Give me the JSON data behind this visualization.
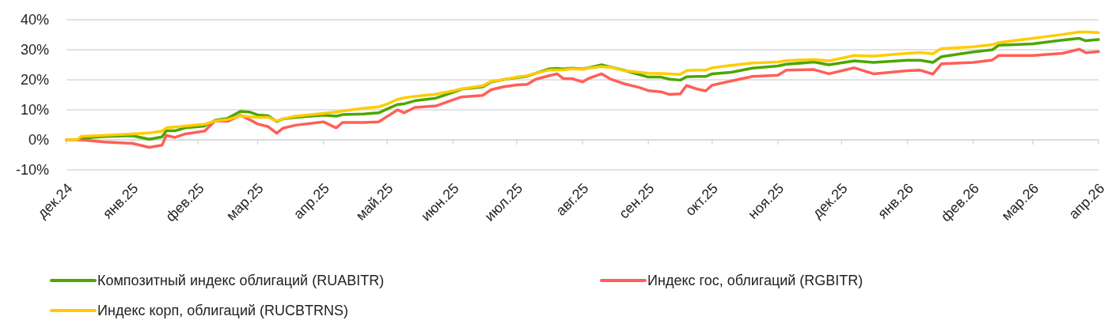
{
  "chart_data": {
    "type": "line",
    "x": [
      "2024-12-01",
      "2024-12-06",
      "2024-12-08",
      "2024-12-19",
      "2025-01-01",
      "2025-01-09",
      "2025-01-15",
      "2025-01-17",
      "2025-01-21",
      "2025-01-26",
      "2025-02-04",
      "2025-02-09",
      "2025-02-15",
      "2025-02-21",
      "2025-02-25",
      "2025-03-01",
      "2025-03-06",
      "2025-03-10",
      "2025-03-13",
      "2025-03-19",
      "2025-04-01",
      "2025-04-07",
      "2025-04-10",
      "2025-04-20",
      "2025-04-27",
      "2025-05-01",
      "2025-05-06",
      "2025-05-09",
      "2025-05-14",
      "2025-05-24",
      "2025-06-01",
      "2025-06-05",
      "2025-06-15",
      "2025-06-19",
      "2025-06-25",
      "2025-07-01",
      "2025-07-06",
      "2025-07-10",
      "2025-07-16",
      "2025-07-20",
      "2025-07-23",
      "2025-07-27",
      "2025-08-01",
      "2025-08-04",
      "2025-08-10",
      "2025-08-14",
      "2025-08-21",
      "2025-08-28",
      "2025-09-01",
      "2025-09-07",
      "2025-09-11",
      "2025-09-16",
      "2025-09-19",
      "2025-09-24",
      "2025-09-28",
      "2025-10-01",
      "2025-10-10",
      "2025-10-20",
      "2025-11-01",
      "2025-11-05",
      "2025-11-18",
      "2025-11-25",
      "2025-12-07",
      "2025-12-16",
      "2026-01-01",
      "2026-01-07",
      "2026-01-13",
      "2026-01-17",
      "2026-02-01",
      "2026-02-10",
      "2026-02-13",
      "2026-03-01",
      "2026-03-15",
      "2026-03-23",
      "2026-03-26",
      "2026-04-01"
    ],
    "series": [
      {
        "name": "Композитный индекс облигаций (RUABITR)",
        "color": "#4ca600",
        "values": [
          0,
          0,
          0.5,
          1.1,
          1.4,
          0.2,
          1.0,
          3.0,
          3.0,
          4.0,
          4.6,
          6.5,
          7.2,
          9.5,
          9.3,
          8.3,
          8.0,
          6.1,
          7.0,
          7.5,
          8.2,
          7.9,
          8.4,
          8.6,
          9.0,
          10.3,
          11.8,
          12.0,
          13.0,
          13.9,
          15.8,
          16.9,
          17.6,
          19.3,
          20.1,
          20.7,
          21.2,
          22.2,
          23.6,
          23.8,
          23.6,
          23.9,
          23.6,
          24.0,
          25.0,
          24.3,
          23.1,
          21.7,
          20.9,
          20.9,
          20.2,
          19.9,
          21.0,
          21.1,
          21.1,
          22.0,
          22.5,
          23.9,
          24.6,
          25.2,
          25.9,
          25.0,
          26.3,
          25.8,
          26.5,
          26.5,
          25.8,
          27.7,
          29.3,
          30.0,
          31.5,
          32.0,
          33.2,
          33.8,
          33.0,
          33.4
        ]
      },
      {
        "name": "Индекс гос, облигаций (RGBITR)",
        "color": "#ff5f57",
        "values": [
          0,
          0,
          0,
          -0.7,
          -1.2,
          -2.5,
          -1.8,
          1.5,
          0.8,
          2.0,
          2.9,
          6.3,
          6.2,
          8.2,
          6.8,
          5.3,
          4.4,
          2.2,
          3.9,
          4.9,
          6.0,
          4.0,
          5.8,
          5.8,
          6.0,
          7.8,
          10.0,
          9.0,
          10.8,
          11.3,
          13.3,
          14.3,
          14.8,
          16.7,
          17.7,
          18.3,
          18.5,
          20.2,
          21.3,
          22.0,
          20.4,
          20.4,
          19.3,
          20.5,
          22.0,
          20.3,
          18.6,
          17.4,
          16.4,
          16.0,
          15.1,
          15.3,
          18.1,
          16.9,
          16.3,
          18.2,
          19.6,
          21.1,
          21.5,
          23.2,
          23.4,
          22.0,
          24.0,
          22.0,
          23.0,
          23.2,
          21.9,
          25.3,
          25.8,
          26.6,
          28.1,
          28.1,
          28.8,
          30.2,
          29.0,
          29.4
        ]
      },
      {
        "name": "Индекс корп, облигаций (RUCBTRNS)",
        "color": "#ffcc00",
        "values": [
          0,
          0,
          1.2,
          1.5,
          2.0,
          2.3,
          2.9,
          4.0,
          4.3,
          4.6,
          5.2,
          6.3,
          6.8,
          8.0,
          7.7,
          7.5,
          7.5,
          6.3,
          7.0,
          7.9,
          8.8,
          9.3,
          9.6,
          10.5,
          11.0,
          11.9,
          13.5,
          14.0,
          14.5,
          15.2,
          16.3,
          17.0,
          18.0,
          19.5,
          20.1,
          20.9,
          21.4,
          22.2,
          23.2,
          23.3,
          23.3,
          23.7,
          23.5,
          23.9,
          24.4,
          24.2,
          23.0,
          22.5,
          22.2,
          22.1,
          22.0,
          21.8,
          23.1,
          23.2,
          23.2,
          24.0,
          24.8,
          25.6,
          25.9,
          26.4,
          26.8,
          26.3,
          28.1,
          27.9,
          28.8,
          29.1,
          28.7,
          30.4,
          31.0,
          31.7,
          32.4,
          33.8,
          35.1,
          35.9,
          35.9,
          35.7
        ]
      }
    ],
    "xlim": [
      "2024-12-01",
      "2026-04-01"
    ],
    "xticks": [
      {
        "value": "2024-12-01",
        "label": "дек.24"
      },
      {
        "value": "2025-01-01",
        "label": "янв.25"
      },
      {
        "value": "2025-02-01",
        "label": "фев.25"
      },
      {
        "value": "2025-03-01",
        "label": "мар.25"
      },
      {
        "value": "2025-04-01",
        "label": "апр.25"
      },
      {
        "value": "2025-05-01",
        "label": "май.25"
      },
      {
        "value": "2025-06-01",
        "label": "июн.25"
      },
      {
        "value": "2025-07-01",
        "label": "июл.25"
      },
      {
        "value": "2025-08-01",
        "label": "авг.25"
      },
      {
        "value": "2025-09-01",
        "label": "сен.25"
      },
      {
        "value": "2025-10-01",
        "label": "окт.25"
      },
      {
        "value": "2025-11-01",
        "label": "ноя.25"
      },
      {
        "value": "2025-12-01",
        "label": "дек.25"
      },
      {
        "value": "2026-01-01",
        "label": "янв.26"
      },
      {
        "value": "2026-02-01",
        "label": "фев.26"
      },
      {
        "value": "2026-03-01",
        "label": "мар.26"
      },
      {
        "value": "2026-04-01",
        "label": "апр.26"
      }
    ],
    "ylim": [
      -10,
      40
    ],
    "yticks": [
      {
        "value": -10,
        "label": "-10%"
      },
      {
        "value": 0,
        "label": "0%"
      },
      {
        "value": 10,
        "label": "10%"
      },
      {
        "value": 20,
        "label": "20%"
      },
      {
        "value": 30,
        "label": "30%"
      },
      {
        "value": 40,
        "label": "40%"
      }
    ],
    "grid": "y",
    "legend": "bottom",
    "marker": "none",
    "line_style": "solid"
  }
}
